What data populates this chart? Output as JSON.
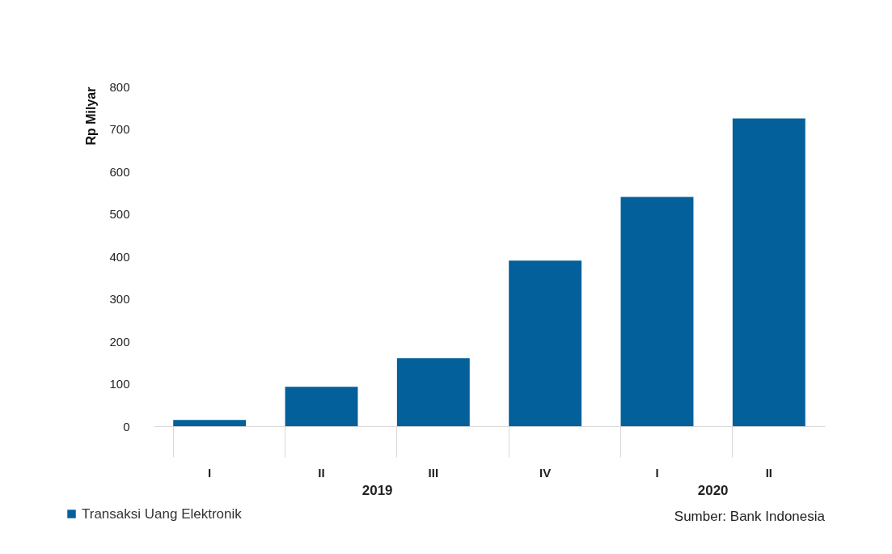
{
  "chart_data": {
    "type": "bar",
    "categories": [
      "I",
      "II",
      "III",
      "IV",
      "I",
      "II"
    ],
    "ylabel": "Rp Milyar",
    "series": [
      {
        "name": "Transaksi Uang Elektronik",
        "color": "#03609a",
        "values": [
          15,
          93,
          160,
          390,
          540,
          725
        ]
      }
    ],
    "ylim": [
      0,
      800
    ],
    "yticks": [
      0,
      100,
      200,
      300,
      400,
      500,
      600,
      700,
      800
    ],
    "grid": false,
    "legend": "bottom left",
    "annotations": [
      "2019",
      "2020",
      "Sumber: Bank Indonesia"
    ]
  }
}
